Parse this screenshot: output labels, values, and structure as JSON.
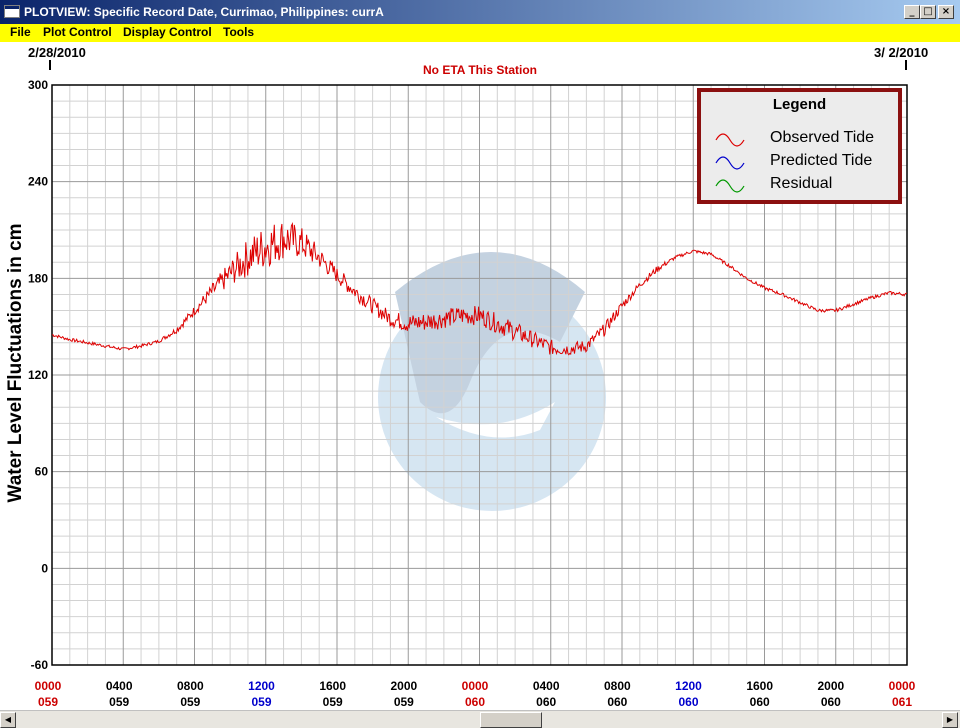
{
  "window": {
    "title": "PLOTVIEW: Specific Record Date, Currimao, Philippines: currA"
  },
  "menu": {
    "items": [
      "File",
      "Plot Control",
      "Display Control",
      "Tools"
    ]
  },
  "colors": {
    "observed": "#dd0000",
    "predicted": "#0000cc",
    "residual": "#009900",
    "legend_border": "#8b1010",
    "menu_bg": "#ffff00",
    "tick_red": "#cc0000",
    "tick_blue": "#0000cc"
  },
  "chart_data": {
    "type": "line",
    "title": "No ETA This Station",
    "ylabel": "Water Level Fluctuations in cm",
    "xlabel": "",
    "ylim": [
      -60,
      300
    ],
    "yticks": [
      -60,
      0,
      60,
      120,
      180,
      240,
      300
    ],
    "date_markers": {
      "left": "2/28/2010",
      "right": "3/ 2/2010"
    },
    "xticks": [
      {
        "time": "0000",
        "day": "059",
        "color": "red"
      },
      {
        "time": "0400",
        "day": "059",
        "color": "black"
      },
      {
        "time": "0800",
        "day": "059",
        "color": "black"
      },
      {
        "time": "1200",
        "day": "059",
        "color": "blue"
      },
      {
        "time": "1600",
        "day": "059",
        "color": "black"
      },
      {
        "time": "2000",
        "day": "059",
        "color": "black"
      },
      {
        "time": "0000",
        "day": "060",
        "color": "red"
      },
      {
        "time": "0400",
        "day": "060",
        "color": "black"
      },
      {
        "time": "0800",
        "day": "060",
        "color": "black"
      },
      {
        "time": "1200",
        "day": "060",
        "color": "blue"
      },
      {
        "time": "1600",
        "day": "060",
        "color": "black"
      },
      {
        "time": "2000",
        "day": "060",
        "color": "black"
      },
      {
        "time": "0000",
        "day": "061",
        "color": "red"
      }
    ],
    "x_range_hours": [
      0,
      48
    ],
    "grid": true,
    "legend": {
      "title": "Legend",
      "position": "top-right",
      "entries": [
        "Observed Tide",
        "Predicted Tide",
        "Residual"
      ]
    },
    "series": [
      {
        "name": "Observed Tide",
        "x_hours": [
          0,
          1,
          2,
          3,
          4,
          5,
          6,
          7,
          8,
          9,
          10,
          11,
          12,
          13,
          14,
          15,
          16,
          17,
          18,
          19,
          20,
          21,
          22,
          23,
          24,
          25,
          26,
          27,
          28,
          29,
          30,
          31,
          32,
          33,
          34,
          35,
          36,
          37,
          38,
          39,
          40,
          41,
          42,
          43,
          44,
          45,
          46,
          47,
          48
        ],
        "values": [
          145,
          142,
          140,
          138,
          136,
          138,
          141,
          148,
          160,
          172,
          183,
          193,
          200,
          205,
          202,
          193,
          182,
          172,
          163,
          155,
          152,
          153,
          155,
          157,
          157,
          152,
          147,
          142,
          137,
          136,
          138,
          148,
          163,
          176,
          186,
          193,
          197,
          195,
          188,
          180,
          174,
          170,
          165,
          160,
          160,
          164,
          168,
          171,
          170
        ],
        "noise_cm": [
          1,
          1,
          1,
          1,
          1,
          1,
          1,
          2,
          3,
          5,
          8,
          12,
          14,
          13,
          10,
          7,
          5,
          5,
          5,
          5,
          6,
          6,
          6,
          6,
          6,
          6,
          6,
          5,
          5,
          4,
          4,
          4,
          3,
          2,
          2,
          1,
          1,
          1,
          1,
          1,
          1,
          1,
          1,
          1,
          1,
          1,
          1,
          1,
          1
        ]
      }
    ]
  }
}
